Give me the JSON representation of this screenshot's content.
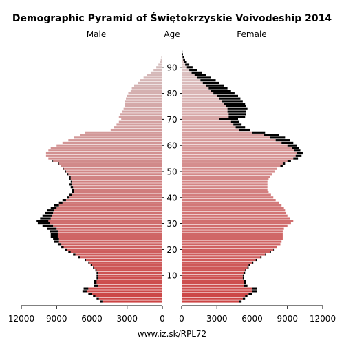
{
  "chart_data": {
    "type": "bar",
    "title": "Demographic Pyramid of Świętokrzyskie Voivodeship 2014",
    "left_label": "Male",
    "center_label": "Age",
    "right_label": "Female",
    "source": "www.iz.sk/RPL72",
    "x_ticks_left": [
      "12000",
      "9000",
      "6000",
      "3000",
      "0"
    ],
    "x_ticks_right": [
      "0",
      "3000",
      "6000",
      "9000",
      "12000"
    ],
    "age_ticks": [
      "10",
      "20",
      "30",
      "40",
      "50",
      "60",
      "70",
      "80",
      "90"
    ],
    "xlim": [
      0,
      12000
    ],
    "ages": [
      0,
      1,
      2,
      3,
      4,
      5,
      6,
      7,
      8,
      9,
      10,
      11,
      12,
      13,
      14,
      15,
      16,
      17,
      18,
      19,
      20,
      21,
      22,
      23,
      24,
      25,
      26,
      27,
      28,
      29,
      30,
      31,
      32,
      33,
      34,
      35,
      36,
      37,
      38,
      39,
      40,
      41,
      42,
      43,
      44,
      45,
      46,
      47,
      48,
      49,
      50,
      51,
      52,
      53,
      54,
      55,
      56,
      57,
      58,
      59,
      60,
      61,
      62,
      63,
      64,
      65,
      66,
      67,
      68,
      69,
      70,
      71,
      72,
      73,
      74,
      75,
      76,
      77,
      78,
      79,
      80,
      81,
      82,
      83,
      84,
      85,
      86,
      87,
      88,
      89,
      90,
      91,
      92,
      93,
      94,
      95,
      96,
      97,
      98,
      99,
      100
    ],
    "male": [
      5100,
      5400,
      5700,
      6000,
      6400,
      6300,
      5500,
      5600,
      5600,
      5500,
      5500,
      5500,
      5600,
      5800,
      6000,
      6200,
      6500,
      7000,
      7400,
      7800,
      8100,
      8400,
      8600,
      8800,
      8800,
      8900,
      8900,
      8900,
      9000,
      9300,
      9600,
      9700,
      9500,
      9400,
      9300,
      9200,
      9000,
      8800,
      8500,
      8200,
      7900,
      7700,
      7500,
      7500,
      7600,
      7700,
      7700,
      7800,
      7800,
      8000,
      8200,
      8400,
      8600,
      8800,
      9300,
      9700,
      9900,
      9900,
      9700,
      9500,
      9000,
      8500,
      8000,
      7500,
      7000,
      6600,
      4400,
      4100,
      3900,
      3700,
      3500,
      3700,
      3600,
      3400,
      3300,
      3200,
      3200,
      3200,
      3100,
      3000,
      2900,
      2700,
      2600,
      2400,
      2100,
      1900,
      1600,
      1300,
      1000,
      750,
      520,
      340,
      220,
      140,
      90,
      55,
      35,
      20,
      12,
      7,
      4
    ],
    "male_excess": [
      200,
      200,
      200,
      300,
      400,
      400,
      300,
      200,
      200,
      100,
      100,
      100,
      100,
      100,
      100,
      100,
      100,
      200,
      200,
      200,
      200,
      200,
      300,
      400,
      500,
      600,
      600,
      700,
      800,
      900,
      1000,
      1000,
      900,
      800,
      700,
      600,
      500,
      400,
      300,
      300,
      200,
      200,
      200,
      200,
      200,
      200,
      100,
      100,
      100,
      100,
      100,
      50,
      50,
      50,
      50,
      0,
      0,
      0,
      0,
      0,
      0,
      0,
      0,
      0,
      0,
      0,
      0,
      0,
      0,
      0,
      0,
      0,
      0,
      0,
      0,
      0,
      0,
      0,
      0,
      0,
      0,
      0,
      0,
      0,
      0,
      0,
      0,
      0,
      0,
      0,
      0,
      0,
      0,
      0,
      0,
      0,
      0,
      0,
      0,
      0,
      0
    ],
    "female": [
      4900,
      5200,
      5400,
      5700,
      6000,
      6000,
      5300,
      5300,
      5300,
      5200,
      5200,
      5300,
      5400,
      5600,
      5700,
      6000,
      6300,
      6700,
      7100,
      7500,
      7800,
      8100,
      8400,
      8500,
      8600,
      8600,
      8600,
      8600,
      8700,
      9000,
      9300,
      9500,
      9200,
      9000,
      8900,
      8800,
      8700,
      8500,
      8300,
      8000,
      7800,
      7600,
      7400,
      7300,
      7300,
      7300,
      7300,
      7400,
      7500,
      7700,
      7900,
      8100,
      8400,
      8600,
      9000,
      9500,
      9700,
      9800,
      9600,
      9400,
      9000,
      8500,
      8000,
      7500,
      7000,
      6000,
      4900,
      4600,
      4400,
      4200,
      3200,
      4000,
      4000,
      3900,
      3900,
      3800,
      3600,
      3400,
      3200,
      3000,
      2700,
      2500,
      2300,
      2100,
      1800,
      1600,
      1300,
      1100,
      850,
      650,
      450,
      300,
      200,
      130,
      80,
      50,
      30,
      18,
      10,
      6,
      3
    ],
    "female_excess": [
      200,
      200,
      200,
      300,
      400,
      400,
      300,
      200,
      200,
      100,
      100,
      100,
      100,
      100,
      100,
      100,
      100,
      100,
      100,
      100,
      50,
      0,
      0,
      0,
      0,
      0,
      0,
      0,
      0,
      0,
      0,
      0,
      0,
      0,
      0,
      0,
      0,
      0,
      0,
      0,
      0,
      0,
      0,
      0,
      0,
      0,
      0,
      0,
      0,
      0,
      0,
      0,
      200,
      200,
      300,
      400,
      500,
      500,
      500,
      600,
      800,
      1000,
      1200,
      1300,
      1300,
      1100,
      900,
      800,
      700,
      700,
      1600,
      1400,
      1500,
      1600,
      1700,
      1700,
      1800,
      1800,
      1800,
      1800,
      1800,
      1700,
      1600,
      1500,
      1400,
      1300,
      1200,
      1000,
      850,
      650,
      480,
      350,
      240,
      160,
      100,
      65,
      40,
      25,
      14,
      8,
      5
    ],
    "colors": {
      "excess": "#000000",
      "male_bottom": "#cc4444",
      "male_top": "#d6c9c9",
      "female_bottom": "#cc4444",
      "female_top": "#ddd0d0"
    }
  }
}
